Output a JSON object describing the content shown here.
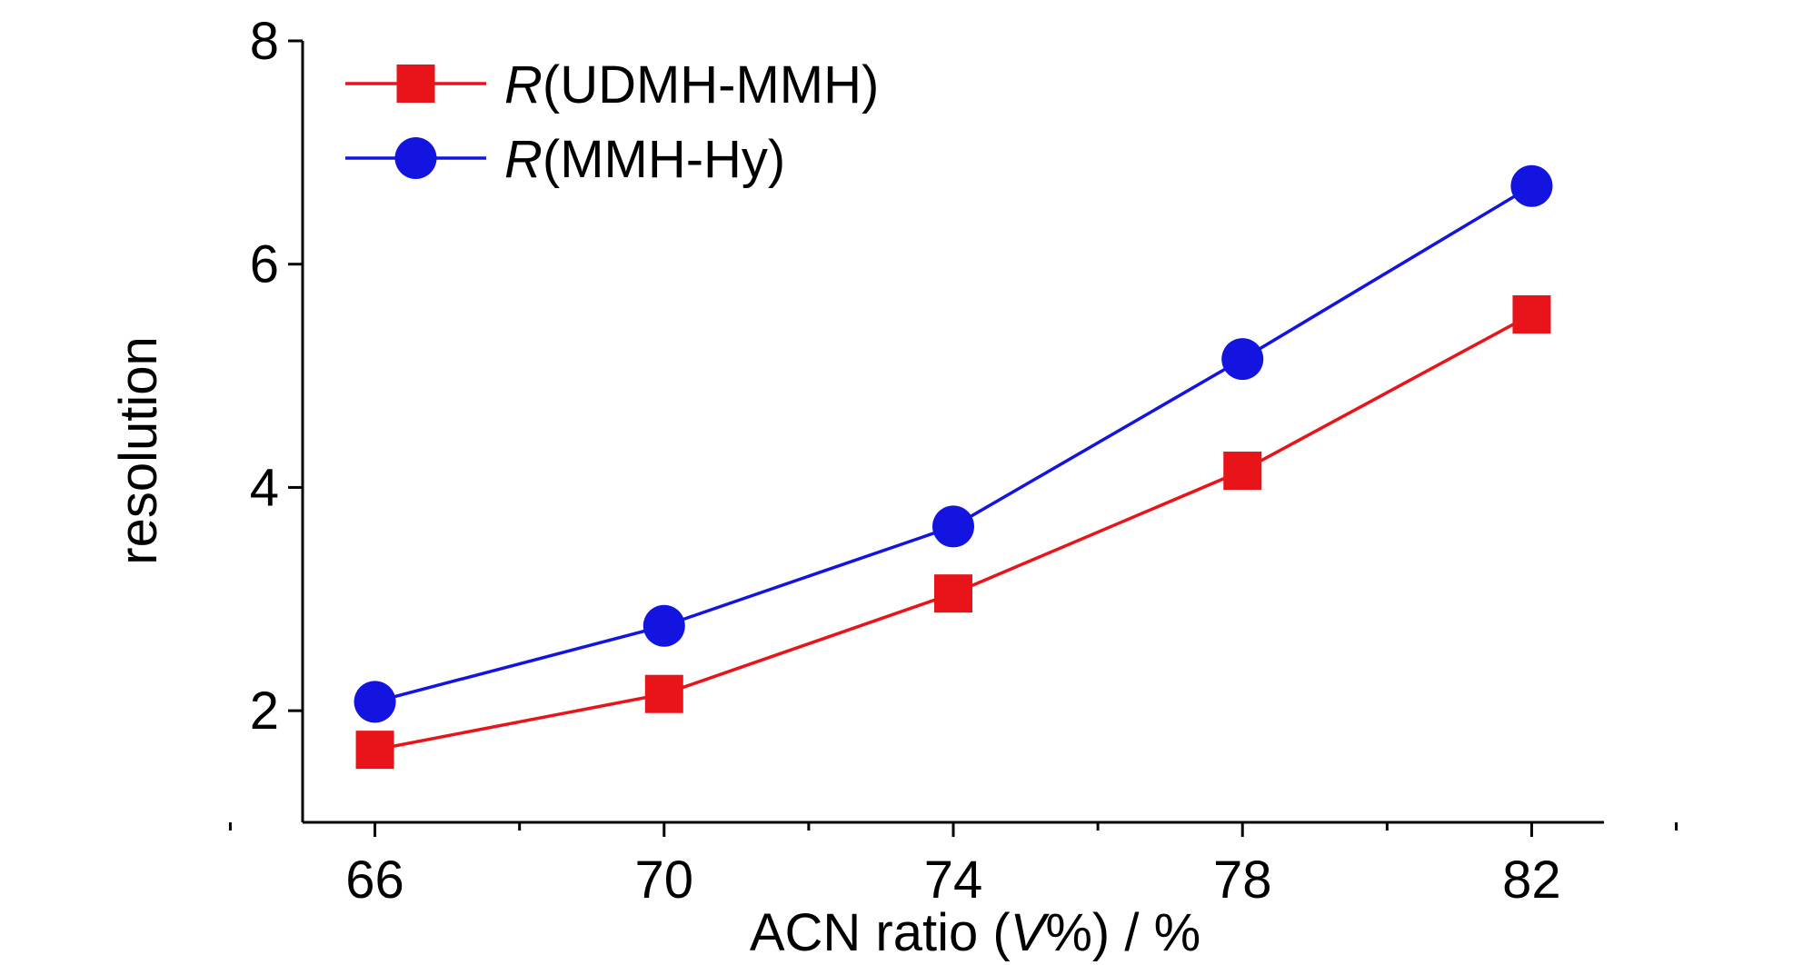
{
  "chart_data": {
    "type": "line",
    "xlabel": {
      "prefix": "ACN ratio (",
      "italic": "V",
      "suffix": "%) / %"
    },
    "ylabel": "resolution",
    "x_ticks": [
      "66",
      "70",
      "74",
      "78",
      "82"
    ],
    "y_ticks": [
      "2",
      "4",
      "6",
      "8"
    ],
    "xlim": [
      65,
      83
    ],
    "ylim": [
      1,
      8
    ],
    "legend_position": "top-left",
    "grid": false,
    "series": [
      {
        "name_italic": "R",
        "name_rest": "(UDMH-MMH)",
        "color": "#e8141a",
        "marker": "square",
        "x": [
          66,
          70,
          74,
          78,
          82
        ],
        "y": [
          1.65,
          2.15,
          3.05,
          4.15,
          5.55
        ]
      },
      {
        "name_italic": "R",
        "name_rest": "(MMH-Hy)",
        "color": "#1414e0",
        "marker": "circle",
        "x": [
          66,
          70,
          74,
          78,
          82
        ],
        "y": [
          2.08,
          2.76,
          3.65,
          5.15,
          6.7
        ]
      }
    ]
  }
}
